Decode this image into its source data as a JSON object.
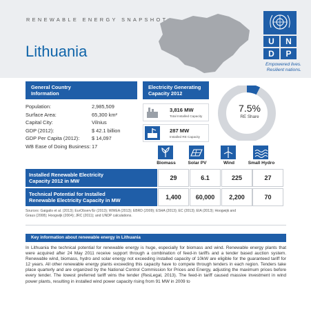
{
  "header": {
    "snapshot_label": "RENEWABLE ENERGY SNAPSHOT:",
    "country": "Lithuania",
    "logo_text": [
      "U",
      "N",
      "D",
      "P"
    ],
    "tagline_line1": "Empowered lives.",
    "tagline_line2": "Resilient nations."
  },
  "general": {
    "title_line1": "General Country",
    "title_line2": "Information",
    "rows": [
      {
        "label": "Population:",
        "value": "2,985,509"
      },
      {
        "label": "Surface Area:",
        "value": "65,300 km²"
      },
      {
        "label": "Capital City:",
        "value": "Vilnius"
      },
      {
        "label": "GDP (2012):",
        "value": "$ 42.1 billion"
      },
      {
        "label": "GDP Per Capita (2012):",
        "value": "$ 14,097"
      },
      {
        "label": "WB Ease of Doing Business:",
        "value": "17"
      }
    ]
  },
  "capacity": {
    "title_line1": "Electricity Generating",
    "title_line2": "Capacity 2012",
    "total_value": "3,816 MW",
    "total_label": "Total Installed Capacity",
    "re_value": "287 MW",
    "re_label": "Installed RE Capacity",
    "re_share": "7.5%",
    "re_share_label": "RE Share",
    "re_share_fraction": 0.075,
    "colors": {
      "accent": "#1f5ea8",
      "ring": "#d4d7dc"
    }
  },
  "technologies": {
    "labels": [
      "Biomass",
      "Solar PV",
      "Wind",
      "Small Hydro"
    ],
    "rows": [
      {
        "head_line1": "Installed Renewable Electricity",
        "head_line2": "Capacity 2012 in MW",
        "values": [
          "29",
          "6.1",
          "225",
          "27"
        ]
      },
      {
        "head_line1": "Technical Potential for Installed",
        "head_line2": "Renewable Electricity Capacity in MW",
        "values": [
          "1,400",
          "60,000",
          "2,200",
          "70"
        ]
      }
    ]
  },
  "sources": {
    "line1": "Sources: Gaigalis et al. (2013); EurObserv'Er (2013); WWEA (2013); EBRD (2009); ESHA (2013); EC (2013); EIA (2013); Hoogwijk and",
    "line2": "Graus (2008); Hoogwijk (2004); JRC (2011); and UNDP calculations."
  },
  "key_info": {
    "title": "Key information about renewable energy in Lithuania",
    "paragraph": "In Lithuania the technical potential for renewable energy is huge, especially for biomass and wind. Renewable energy plants that were acquired after 24 May 2011 receive support through a combination of feed-in tariffs and a tender based auction system. Renewable wind, biomass, hydro and solar energy not exceeding installed capacity of 10kW are eligible for the guaranteed tariff for 12 years. All other renewable energy plants exceeding this capacity have to compete through tenders in each region. Tenders take place quarterly and are organized by the National Control Commission for Prices and Energy, adjusting the maximum prices before every tender. The lowest preferred tariff wins the tender (ResLegal, 2013). The feed-in tariff caused massive investment in wind power plants, resulting in installed wind power capacity rising from 91 MW in 2009 to"
  }
}
